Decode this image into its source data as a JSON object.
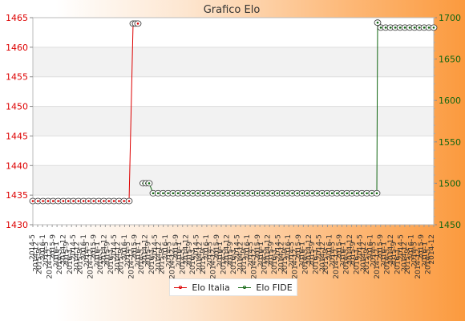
{
  "chart_data": {
    "type": "line",
    "title": "Grafico Elo",
    "left_axis": {
      "ylim": [
        1430,
        1465
      ],
      "ticks": [
        1430,
        1435,
        1440,
        1445,
        1450,
        1455,
        1460,
        1465
      ],
      "color": "#dd0000"
    },
    "right_axis": {
      "ylim": [
        1450,
        1700
      ],
      "ticks": [
        1450,
        1500,
        1550,
        1600,
        1650,
        1700
      ],
      "color": "#116611"
    },
    "grid": true,
    "legend_position": "bottom",
    "x_label_note": "overlapping date tick labels (YYYY-MM), illegible",
    "x_label_samples": [
      "2014-5",
      "2014-12",
      "2015-9",
      "2016-1"
    ],
    "series": [
      {
        "name": "Elo Italia",
        "axis": "left",
        "color": "#dd0000",
        "segments": [
          {
            "value": 1434,
            "start": 0.0,
            "end": 0.24,
            "count": 20
          },
          {
            "value": 1464,
            "start": 0.25,
            "end": 0.262,
            "count": 3
          }
        ]
      },
      {
        "name": "Elo FIDE",
        "axis": "right",
        "color": "#116611",
        "segments": [
          {
            "value": 1500,
            "start": 0.275,
            "end": 0.29,
            "count": 3
          },
          {
            "value": 1488,
            "start": 0.3,
            "end": 0.858,
            "count": 46
          },
          {
            "value": 1694,
            "start": 0.86,
            "end": 0.86,
            "count": 1
          },
          {
            "value": 1688,
            "start": 0.868,
            "end": 1.0,
            "count": 12
          }
        ]
      }
    ]
  }
}
